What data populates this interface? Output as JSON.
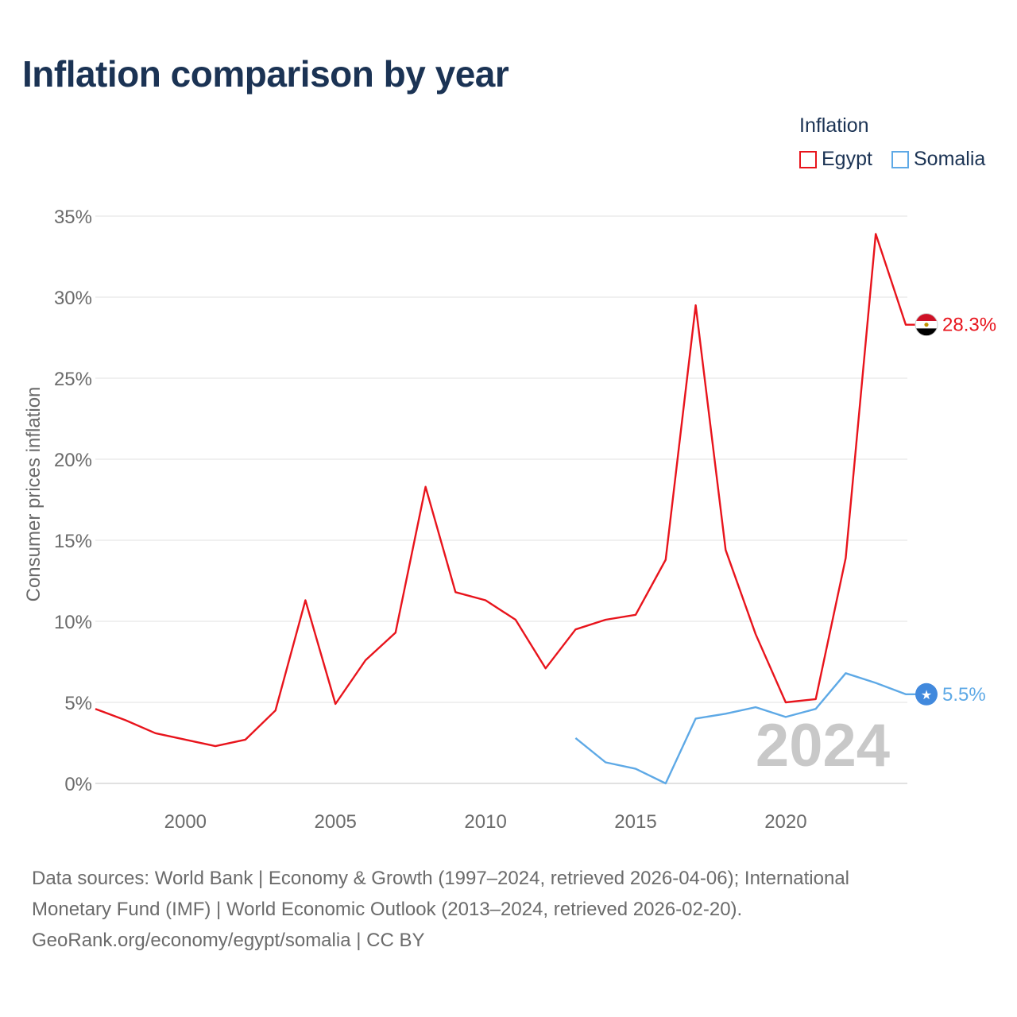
{
  "title": "Inflation comparison by year",
  "legend": {
    "title": "Inflation",
    "items": [
      {
        "label": "Egypt",
        "color": "#e8141c"
      },
      {
        "label": "Somalia",
        "color": "#5ea9e6"
      }
    ]
  },
  "chart_data": {
    "type": "line",
    "ylabel": "Consumer prices inflation",
    "xlabel": "",
    "xlim": [
      1997,
      2024
    ],
    "ylim": [
      0,
      35
    ],
    "yticks": [
      0,
      5,
      10,
      15,
      20,
      25,
      30,
      35
    ],
    "ytick_labels": [
      "0%",
      "5%",
      "10%",
      "15%",
      "20%",
      "25%",
      "30%",
      "35%"
    ],
    "xticks": [
      2000,
      2005,
      2010,
      2015,
      2020
    ],
    "xtick_labels": [
      "2000",
      "2005",
      "2010",
      "2015",
      "2020"
    ],
    "grid": true,
    "watermark_year": "2024",
    "series": [
      {
        "name": "Egypt",
        "color": "#e8141c",
        "end_label": "28.3%",
        "flag_icon": "egypt-flag-icon",
        "x": [
          1997,
          1998,
          1999,
          2000,
          2001,
          2002,
          2003,
          2004,
          2005,
          2006,
          2007,
          2008,
          2009,
          2010,
          2011,
          2012,
          2013,
          2014,
          2015,
          2016,
          2017,
          2018,
          2019,
          2020,
          2021,
          2022,
          2023,
          2024
        ],
        "values": [
          4.6,
          3.9,
          3.1,
          2.7,
          2.3,
          2.7,
          4.5,
          11.3,
          4.9,
          7.6,
          9.3,
          18.3,
          11.8,
          11.3,
          10.1,
          7.1,
          9.5,
          10.1,
          10.4,
          13.8,
          29.5,
          14.4,
          9.2,
          5.0,
          5.2,
          13.9,
          33.9,
          28.3
        ]
      },
      {
        "name": "Somalia",
        "color": "#5ea9e6",
        "end_label": "5.5%",
        "flag_icon": "somalia-flag-icon",
        "x": [
          2013,
          2014,
          2015,
          2016,
          2017,
          2018,
          2019,
          2020,
          2021,
          2022,
          2023,
          2024
        ],
        "values": [
          2.8,
          1.3,
          0.9,
          0.0,
          4.0,
          4.3,
          4.7,
          4.1,
          4.6,
          6.8,
          6.2,
          5.5
        ]
      }
    ]
  },
  "source": {
    "line1": "Data sources: World Bank | Economy & Growth (1997–2024, retrieved 2026-04-06); International",
    "line2": "Monetary Fund (IMF) | World Economic Outlook (2013–2024, retrieved 2026-02-20).",
    "line3": "GeoRank.org/economy/egypt/somalia | CC BY"
  }
}
